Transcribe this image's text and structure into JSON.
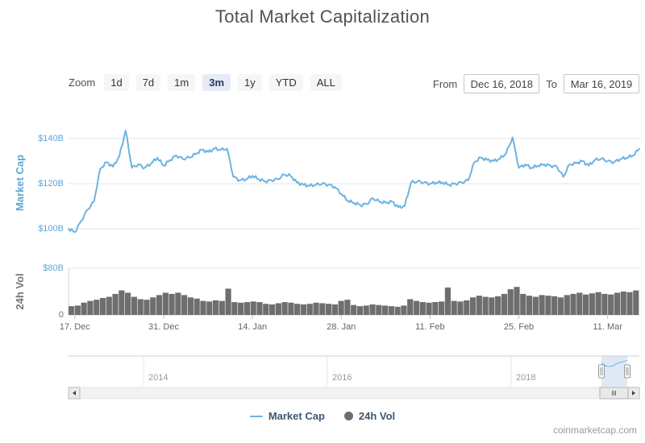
{
  "title": "Total Market Capitalization",
  "toolbar": {
    "zoom_label": "Zoom",
    "zoom_buttons": [
      {
        "label": "1d",
        "selected": false
      },
      {
        "label": "7d",
        "selected": false
      },
      {
        "label": "1m",
        "selected": false
      },
      {
        "label": "3m",
        "selected": true
      },
      {
        "label": "1y",
        "selected": false
      },
      {
        "label": "YTD",
        "selected": false
      },
      {
        "label": "ALL",
        "selected": false
      }
    ],
    "from_label": "From",
    "from_value": "Dec 16, 2018",
    "to_label": "To",
    "to_value": "Mar 16, 2019"
  },
  "legend": {
    "market_cap_label": "Market Cap",
    "volume_label": "24h Vol"
  },
  "watermark": "coinmarketcap.com",
  "colors": {
    "series_line": "#6CB3E2",
    "volume_bar": "#6E6E6E",
    "axis_label_blue": "#5FA7D5",
    "axis_label_gray": "#707070",
    "legend_text": "#3E576F",
    "selected_zoom_bg": "#E6EBF7",
    "gridline": "#E6E6E6",
    "navigator_selection": "#B7CEEC"
  },
  "navigator": {
    "year_labels": [
      "2014",
      "2016",
      "2018"
    ],
    "selection_range": "Dec 16, 2018 - Mar 16, 2019"
  },
  "chart_data": [
    {
      "type": "line",
      "name": "Market Cap",
      "ylabel": "Market Cap",
      "unit": "USD billions",
      "x_start": "2018-12-16",
      "x_end": "2019-03-16",
      "interval": "daily",
      "x_tick_labels": [
        "17. Dec",
        "31. Dec",
        "14. Jan",
        "28. Jan",
        "11. Feb",
        "25. Feb",
        "11. Mar"
      ],
      "x_tick_day_index": [
        1,
        15,
        29,
        43,
        57,
        71,
        85
      ],
      "y_tick_labels": [
        "$100B",
        "$120B",
        "$140B"
      ],
      "y_tick_values": [
        100,
        120,
        140
      ],
      "ylim": [
        95,
        148
      ],
      "grid": true,
      "values": [
        100.0,
        98.5,
        103.5,
        108.5,
        112.0,
        126.5,
        129.5,
        127.5,
        132.0,
        143.5,
        127.0,
        128.5,
        127.0,
        129.0,
        131.5,
        128.0,
        130.5,
        132.5,
        131.0,
        131.5,
        133.0,
        135.0,
        134.0,
        135.5,
        135.0,
        135.5,
        123.0,
        121.5,
        122.0,
        123.5,
        122.0,
        121.0,
        121.5,
        122.0,
        124.0,
        123.5,
        120.5,
        119.5,
        119.0,
        119.5,
        120.0,
        119.5,
        118.5,
        115.5,
        112.5,
        111.5,
        110.5,
        111.0,
        113.5,
        112.0,
        111.5,
        112.0,
        109.5,
        110.0,
        120.5,
        121.0,
        120.5,
        120.0,
        120.5,
        120.5,
        119.5,
        120.0,
        120.5,
        121.5,
        129.5,
        131.5,
        130.5,
        130.0,
        131.0,
        133.5,
        140.5,
        127.0,
        128.5,
        127.0,
        128.0,
        128.5,
        128.0,
        127.5,
        123.0,
        128.5,
        129.0,
        130.0,
        128.0,
        130.5,
        131.0,
        130.0,
        129.5,
        131.0,
        131.5,
        132.5,
        135.5
      ]
    },
    {
      "type": "bar",
      "name": "24h Vol",
      "ylabel": "24h Vol",
      "unit": "USD billions",
      "x_start": "2018-12-16",
      "x_end": "2019-03-16",
      "interval": "daily",
      "y_tick_labels": [
        "0",
        "$80B"
      ],
      "y_tick_values": [
        0,
        80
      ],
      "ylim": [
        0,
        80
      ],
      "grid": true,
      "values": [
        15,
        16,
        21,
        24,
        26,
        29,
        31,
        36,
        42,
        38,
        31,
        27,
        26,
        30,
        34,
        38,
        36,
        38,
        34,
        30,
        28,
        24,
        23,
        25,
        24,
        45,
        22,
        21,
        22,
        23,
        22,
        19,
        18,
        20,
        22,
        21,
        19,
        18,
        19,
        21,
        20,
        19,
        18,
        24,
        26,
        17,
        15,
        16,
        18,
        17,
        16,
        15,
        14,
        16,
        27,
        24,
        22,
        21,
        22,
        23,
        47,
        24,
        23,
        25,
        30,
        33,
        31,
        30,
        32,
        36,
        44,
        48,
        36,
        33,
        31,
        34,
        33,
        32,
        30,
        34,
        36,
        38,
        35,
        37,
        39,
        36,
        35,
        38,
        40,
        39,
        42
      ]
    }
  ]
}
